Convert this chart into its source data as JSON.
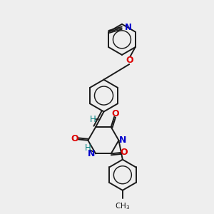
{
  "background_color": "#eeeeee",
  "bond_color": "#1a1a1a",
  "atom_colors": {
    "N": "#0000cc",
    "O": "#dd0000",
    "H": "#008080",
    "CN_color": "#1a1a1a"
  },
  "figsize": [
    3.0,
    3.0
  ],
  "dpi": 100,
  "xlim": [
    0,
    10
  ],
  "ylim": [
    0,
    10
  ]
}
